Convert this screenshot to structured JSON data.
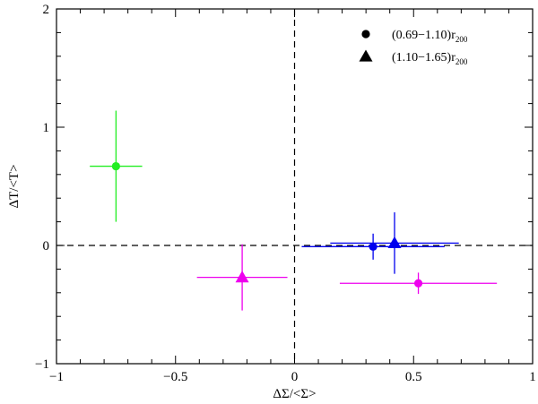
{
  "chart_data": {
    "type": "scatter",
    "title": "",
    "xlabel": "ΔΣ/<Σ>",
    "ylabel": "ΔT/<T>",
    "xlim": [
      -1,
      1
    ],
    "ylim": [
      -1,
      2
    ],
    "x_ticks": [
      -1,
      -0.5,
      0,
      0.5,
      1
    ],
    "x_tick_labels": [
      "−1",
      "−0.5",
      "0",
      "0.5",
      "1"
    ],
    "y_ticks": [
      -1,
      0,
      1,
      2
    ],
    "y_tick_labels": [
      "−1",
      "0",
      "1",
      "2"
    ],
    "reference_lines": {
      "x": 0,
      "y": 0,
      "style": "dashed"
    },
    "legend": {
      "placement": "top-right",
      "entries": [
        {
          "marker": "circle",
          "label": "(0.69−1.10)r",
          "subscript": "200"
        },
        {
          "marker": "triangle",
          "label": "(1.10−1.65)r",
          "subscript": "200"
        }
      ]
    },
    "points": [
      {
        "group": "(0.69−1.10)r200",
        "marker": "circle",
        "color": "#22ee22",
        "x": -0.75,
        "y": 0.67,
        "x_err": 0.11,
        "y_err": 0.47
      },
      {
        "group": "(0.69−1.10)r200",
        "marker": "circle",
        "color": "#0000ee",
        "x": 0.33,
        "y": -0.01,
        "x_err": 0.3,
        "y_err": 0.11
      },
      {
        "group": "(0.69−1.10)r200",
        "marker": "circle",
        "color": "#ee00ee",
        "x": 0.52,
        "y": -0.32,
        "x_err": 0.33,
        "y_err": 0.09
      },
      {
        "group": "(1.10−1.65)r200",
        "marker": "triangle",
        "color": "#ee00ee",
        "x": -0.22,
        "y": -0.27,
        "x_err": 0.19,
        "y_err": 0.28
      },
      {
        "group": "(1.10−1.65)r200",
        "marker": "triangle",
        "color": "#0000ee",
        "x": 0.42,
        "y": 0.02,
        "x_err": 0.27,
        "y_err": 0.26
      }
    ]
  }
}
